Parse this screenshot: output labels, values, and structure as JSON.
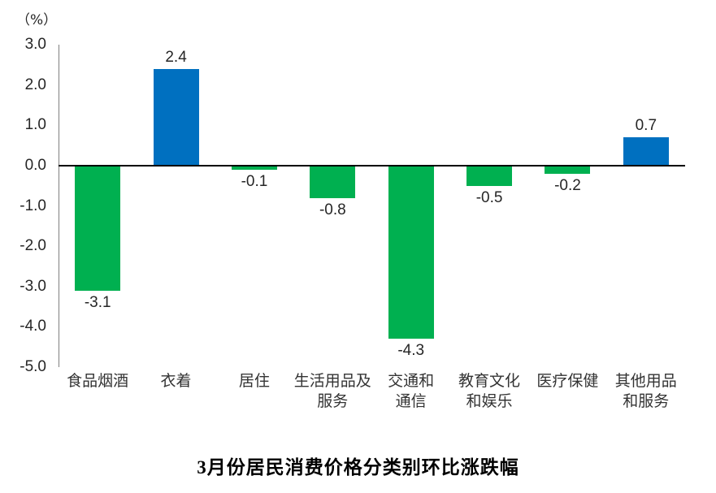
{
  "chart_data": {
    "type": "bar",
    "categories": [
      "食品烟酒",
      "衣着",
      "居住",
      "生活用品及\n服务",
      "交通和\n通信",
      "教育文化\n和娱乐",
      "医疗保健",
      "其他用品\n和服务"
    ],
    "values": [
      -3.1,
      2.4,
      -0.1,
      -0.8,
      -4.3,
      -0.5,
      -0.2,
      0.7
    ],
    "data_labels": [
      "-3.1",
      "2.4",
      "-0.1",
      "-0.8",
      "-4.3",
      "-0.5",
      "-0.2",
      "0.7"
    ],
    "title": "3月份居民消费价格分类别环比涨跌幅",
    "unit_label": "（%）",
    "xlabel": "",
    "ylabel": "（%）",
    "ylim": [
      -5.0,
      3.0
    ],
    "ytick_step": 1.0,
    "ytick_labels": [
      "3.0",
      "2.0",
      "1.0",
      "0.0",
      "-1.0",
      "-2.0",
      "-3.0",
      "-4.0",
      "-5.0"
    ],
    "grid": false,
    "legend": false,
    "positive_color": "#0070C0",
    "negative_color": "#00B050",
    "axis_line_color": "#808080",
    "zero_line_color": "#000000"
  }
}
